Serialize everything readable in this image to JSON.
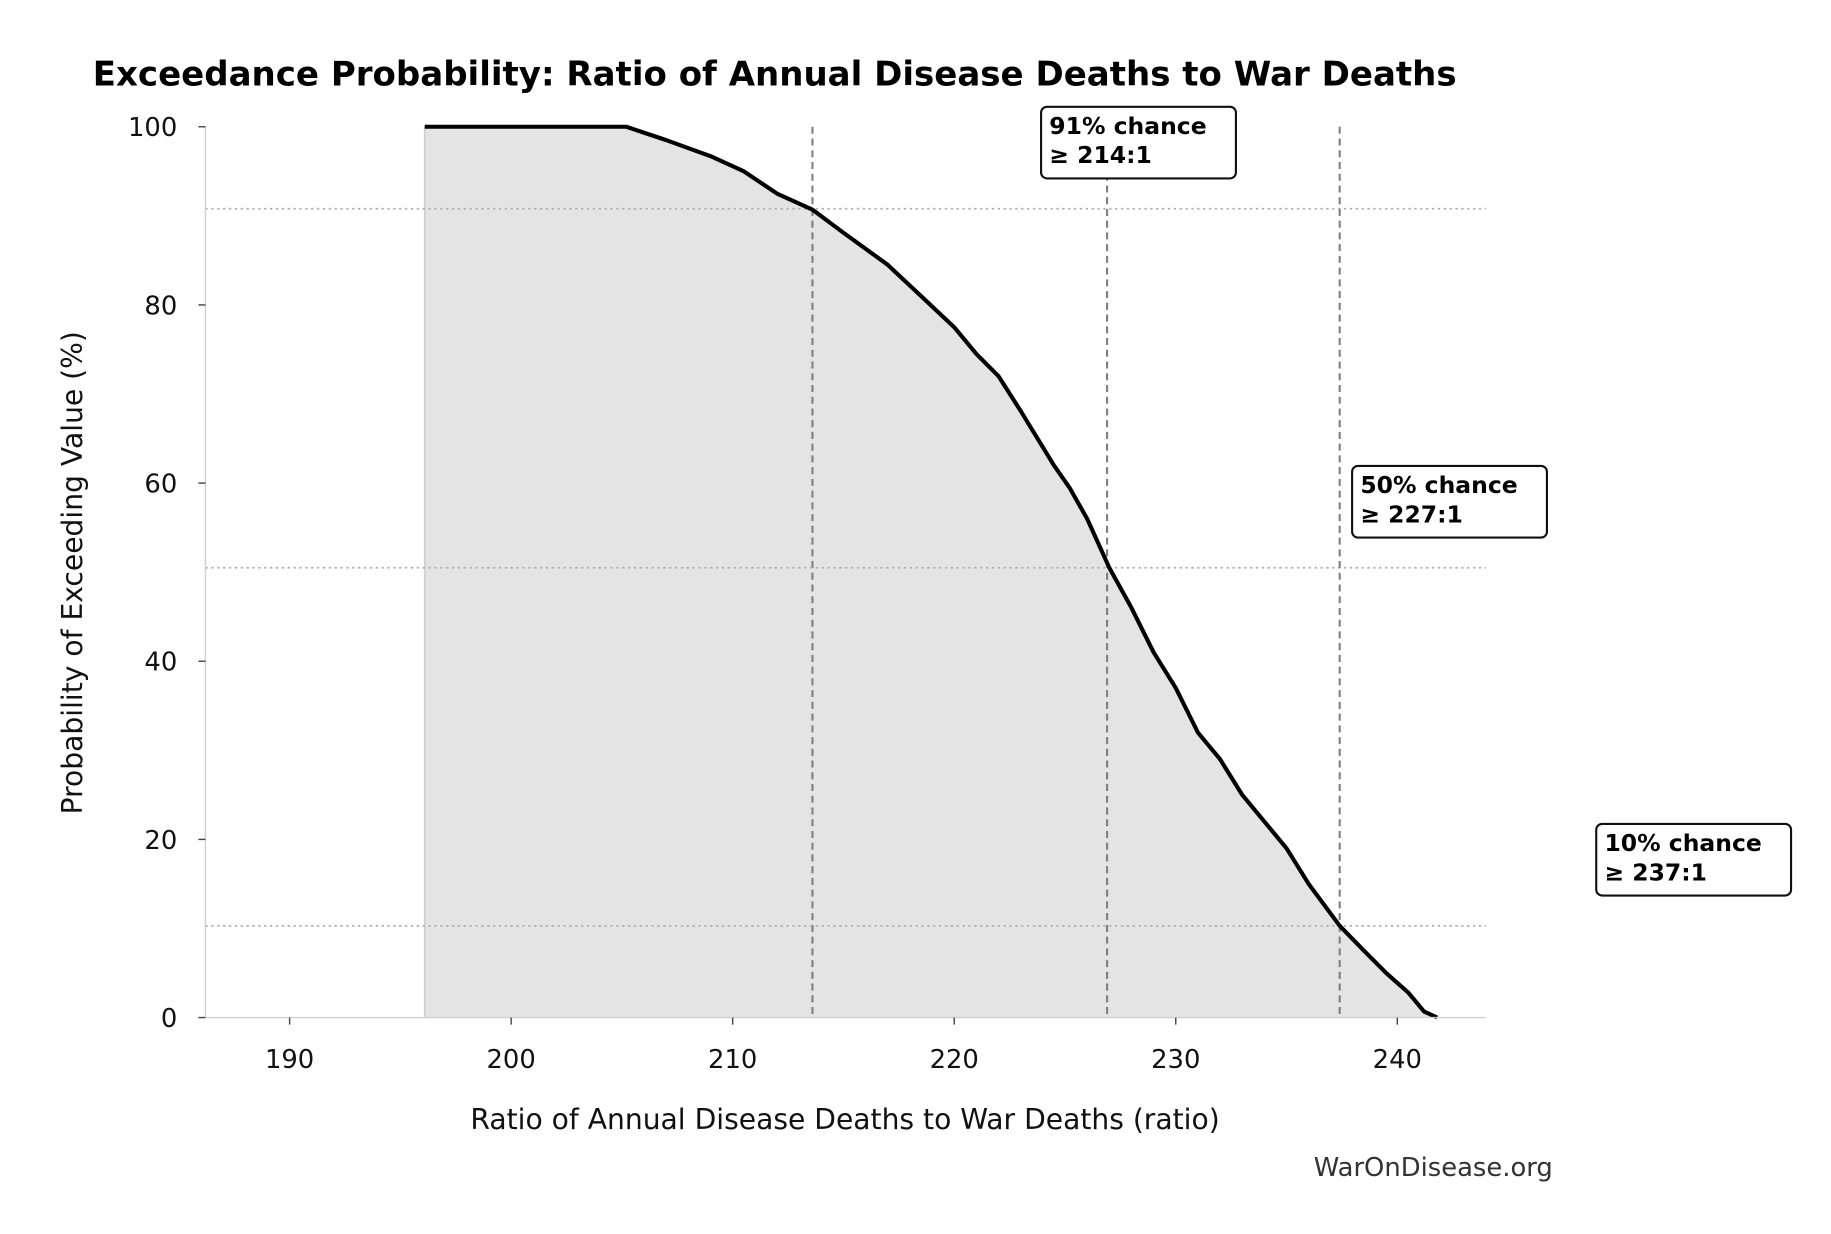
{
  "chart_data": {
    "type": "area",
    "title": "Exceedance Probability: Ratio of Annual Disease Deaths to War Deaths",
    "xlabel": "Ratio of Annual Disease Deaths to War Deaths (ratio)",
    "ylabel": "Probability of Exceeding Value (%)",
    "xlim": [
      186.2,
      244.0
    ],
    "ylim": [
      0,
      100
    ],
    "xticks": [
      190,
      200,
      210,
      220,
      230,
      240
    ],
    "yticks": [
      0,
      20,
      40,
      60,
      80,
      100
    ],
    "grid": false,
    "fill_start_x": 196.1,
    "curve": {
      "x": [
        196.1,
        205.2,
        207,
        209,
        210.5,
        212,
        213.6,
        215,
        217,
        218.5,
        220,
        221,
        222,
        223,
        224.5,
        225.2,
        226,
        227,
        228,
        229,
        230,
        231,
        232,
        233,
        234,
        235,
        236,
        237.4,
        238.5,
        239.5,
        240.5,
        241.2,
        241.8
      ],
      "y": [
        100,
        100,
        98.5,
        96.7,
        95,
        92.5,
        90.7,
        88.1,
        84.5,
        81,
        77.5,
        74.5,
        72,
        68.1,
        62,
        59.5,
        56,
        50.5,
        46,
        41,
        37,
        32,
        29,
        25,
        22,
        19,
        15,
        10.3,
        7.5,
        5,
        2.8,
        0.7,
        0
      ]
    },
    "thresholds": [
      {
        "probability": 90.8,
        "x": 213.6,
        "label_line1": "91% chance",
        "label_line2": "≥ 214:1"
      },
      {
        "probability": 50.5,
        "x": 226.9,
        "label_line1": "50% chance",
        "label_line2": "≥ 227:1"
      },
      {
        "probability": 10.3,
        "x": 237.4,
        "label_line1": "10% chance",
        "label_line2": "≥ 237:1"
      }
    ],
    "colors": {
      "line": "#000000",
      "fill": "#e4e4e4",
      "reference": "#808080",
      "dotted": "#b0b0b0"
    }
  },
  "watermark": "WarOnDisease.org"
}
